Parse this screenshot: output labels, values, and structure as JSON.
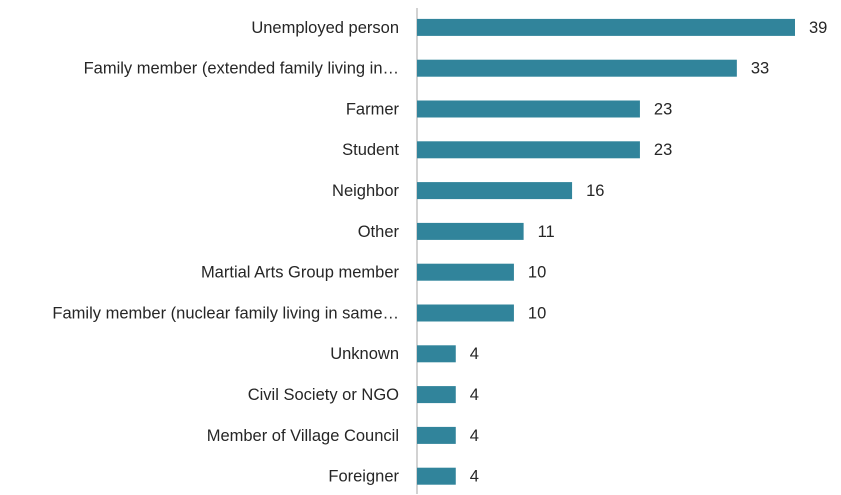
{
  "chart_data": {
    "type": "hbar",
    "color": "#31849b",
    "categories": [
      "Unemployed person",
      "Family member (extended family living in…",
      "Farmer",
      "Student",
      "Neighbor",
      "Other",
      "Martial Arts Group member",
      "Family member (nuclear family living in same…",
      "Unknown",
      "Civil Society or NGO",
      "Member of Village Council",
      "Foreigner"
    ],
    "values": [
      39,
      33,
      23,
      23,
      16,
      11,
      10,
      10,
      4,
      4,
      4,
      4
    ]
  }
}
